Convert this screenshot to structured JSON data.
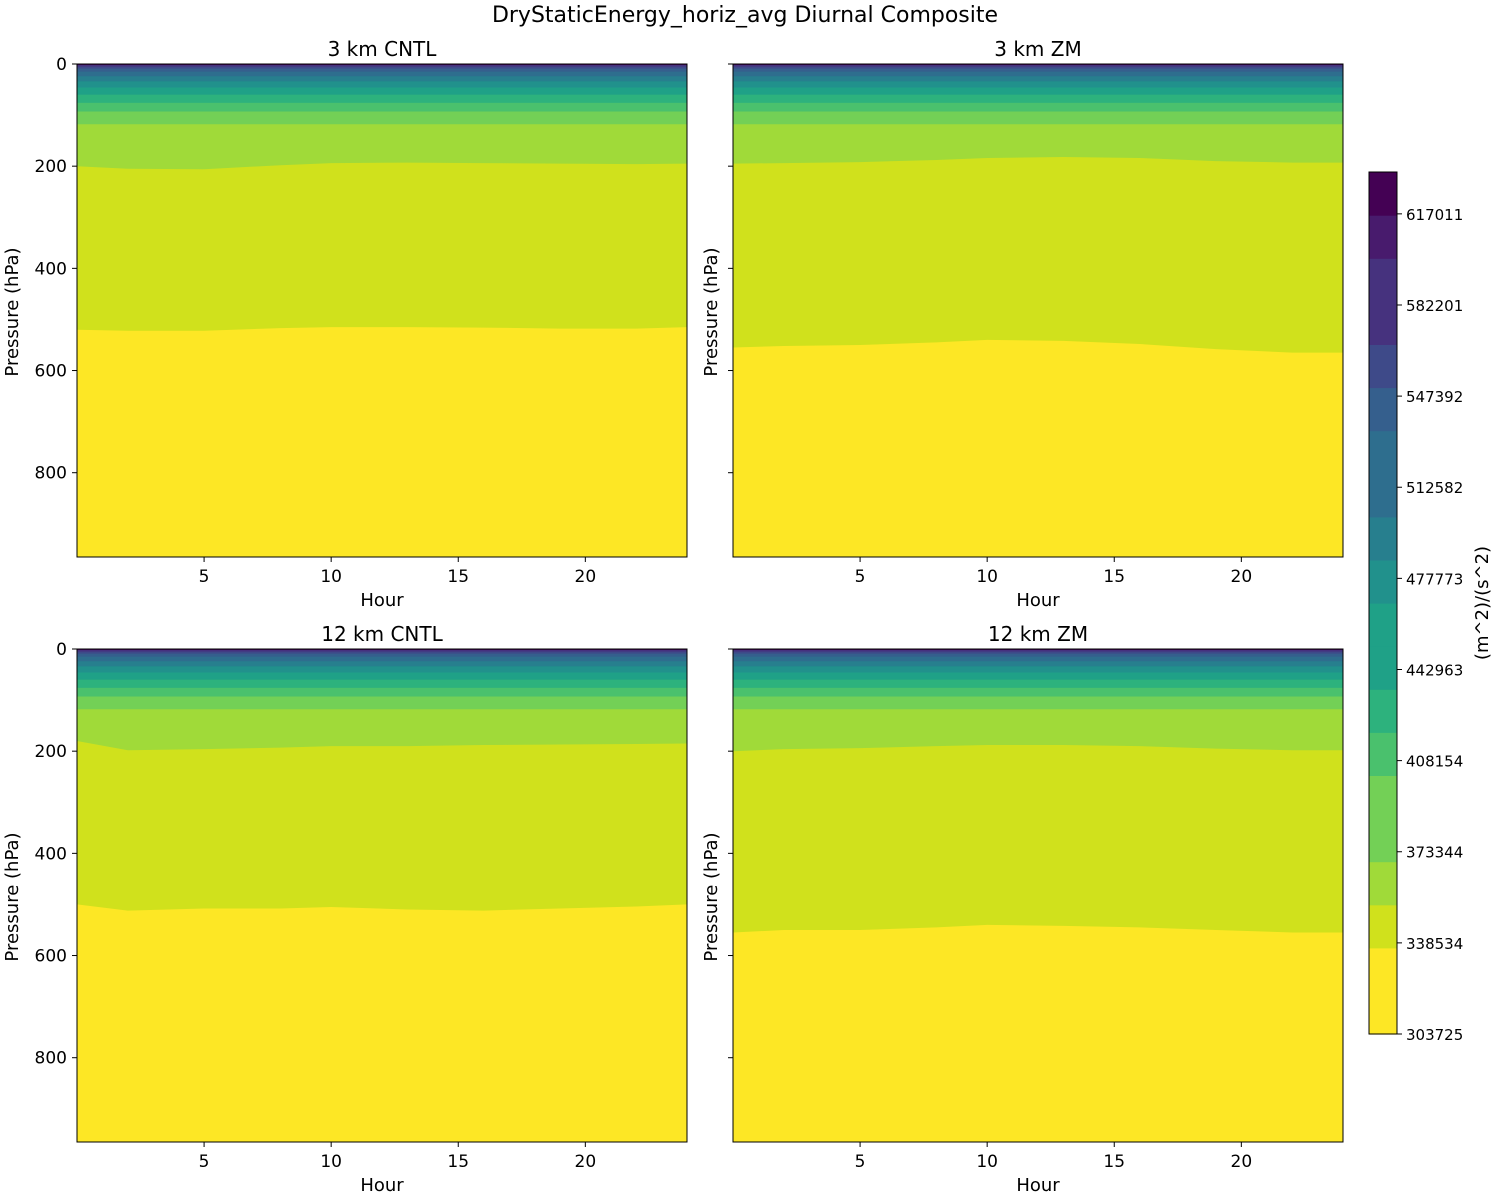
{
  "figure_title": "DryStaticEnergy_horiz_avg Diurnal Composite",
  "chart_data": {
    "type": "contourf",
    "suptitle": "DryStaticEnergy_horiz_avg Diurnal Composite",
    "xlabel": "Hour",
    "ylabel": "Pressure (hPa)",
    "xlim": [
      0,
      24
    ],
    "ylim": [
      965,
      0
    ],
    "xticks": [
      "5",
      "10",
      "15",
      "20"
    ],
    "yticks": [
      "0",
      "200",
      "400",
      "600",
      "800"
    ],
    "colorbar": {
      "label": "(m^2)/(s^2)",
      "min": 303725,
      "max": 633000,
      "levels": 20,
      "tick_labels": [
        "303725",
        "338534",
        "373344",
        "408154",
        "442963",
        "477773",
        "512582",
        "547392",
        "582201",
        "617011"
      ],
      "colors": [
        "#fde725",
        "#d0e11c",
        "#a0da39",
        "#73d056",
        "#4ac16d",
        "#2db27d",
        "#1fa187",
        "#21918c",
        "#277f8e",
        "#2e6e8e",
        "#355f8d",
        "#3e4a89",
        "#46327e",
        "#481b6d",
        "#440154"
      ]
    },
    "panels": [
      {
        "title": "3 km CNTL",
        "hours": [
          0,
          2,
          5,
          8,
          10,
          13,
          16,
          19,
          22,
          24
        ],
        "boundaries": [
          {
            "level_index": 0,
            "pressure": [
              520,
              522,
              522,
              517,
              515,
              515,
              516,
              518,
              518,
              515
            ]
          },
          {
            "level_index": 1,
            "pressure": [
              200,
              205,
              206,
              198,
              194,
              193,
              194,
              195,
              196,
              195
            ]
          },
          {
            "level_index": 2,
            "pressure": [
              118,
              118,
              118,
              118,
              118,
              118,
              118,
              118,
              118,
              118
            ]
          }
        ]
      },
      {
        "title": "3 km ZM",
        "hours": [
          0,
          2,
          5,
          8,
          10,
          13,
          16,
          19,
          22,
          24
        ],
        "boundaries": [
          {
            "level_index": 0,
            "pressure": [
              555,
              552,
              550,
              545,
              540,
              542,
              548,
              558,
              565,
              565
            ]
          },
          {
            "level_index": 1,
            "pressure": [
              195,
              194,
              192,
              188,
              184,
              182,
              184,
              190,
              193,
              193
            ]
          },
          {
            "level_index": 2,
            "pressure": [
              118,
              118,
              118,
              118,
              118,
              118,
              118,
              118,
              118,
              118
            ]
          }
        ]
      },
      {
        "title": "12 km CNTL",
        "hours": [
          0,
          2,
          5,
          8,
          10,
          13,
          16,
          19,
          22,
          24
        ],
        "boundaries": [
          {
            "level_index": 0,
            "pressure": [
              500,
              512,
              508,
              508,
              505,
              510,
              512,
              508,
              504,
              500
            ]
          },
          {
            "level_index": 1,
            "pressure": [
              180,
              198,
              196,
              193,
              190,
              190,
              188,
              187,
              186,
              185
            ]
          },
          {
            "level_index": 2,
            "pressure": [
              118,
              118,
              118,
              118,
              118,
              118,
              118,
              118,
              118,
              118
            ]
          }
        ]
      },
      {
        "title": "12 km ZM",
        "hours": [
          0,
          2,
          5,
          8,
          10,
          13,
          16,
          19,
          22,
          24
        ],
        "boundaries": [
          {
            "level_index": 0,
            "pressure": [
              555,
              550,
              550,
              545,
              540,
              542,
              545,
              550,
              555,
              555
            ]
          },
          {
            "level_index": 1,
            "pressure": [
              200,
              196,
              194,
              190,
              188,
              188,
              190,
              195,
              198,
              198
            ]
          },
          {
            "level_index": 2,
            "pressure": [
              118,
              118,
              118,
              118,
              118,
              118,
              118,
              118,
              118,
              118
            ]
          }
        ]
      }
    ],
    "upper_bands_pressure": [
      93,
      76,
      60,
      46,
      34,
      24,
      15,
      9,
      5,
      2,
      0.7,
      0.2
    ]
  }
}
